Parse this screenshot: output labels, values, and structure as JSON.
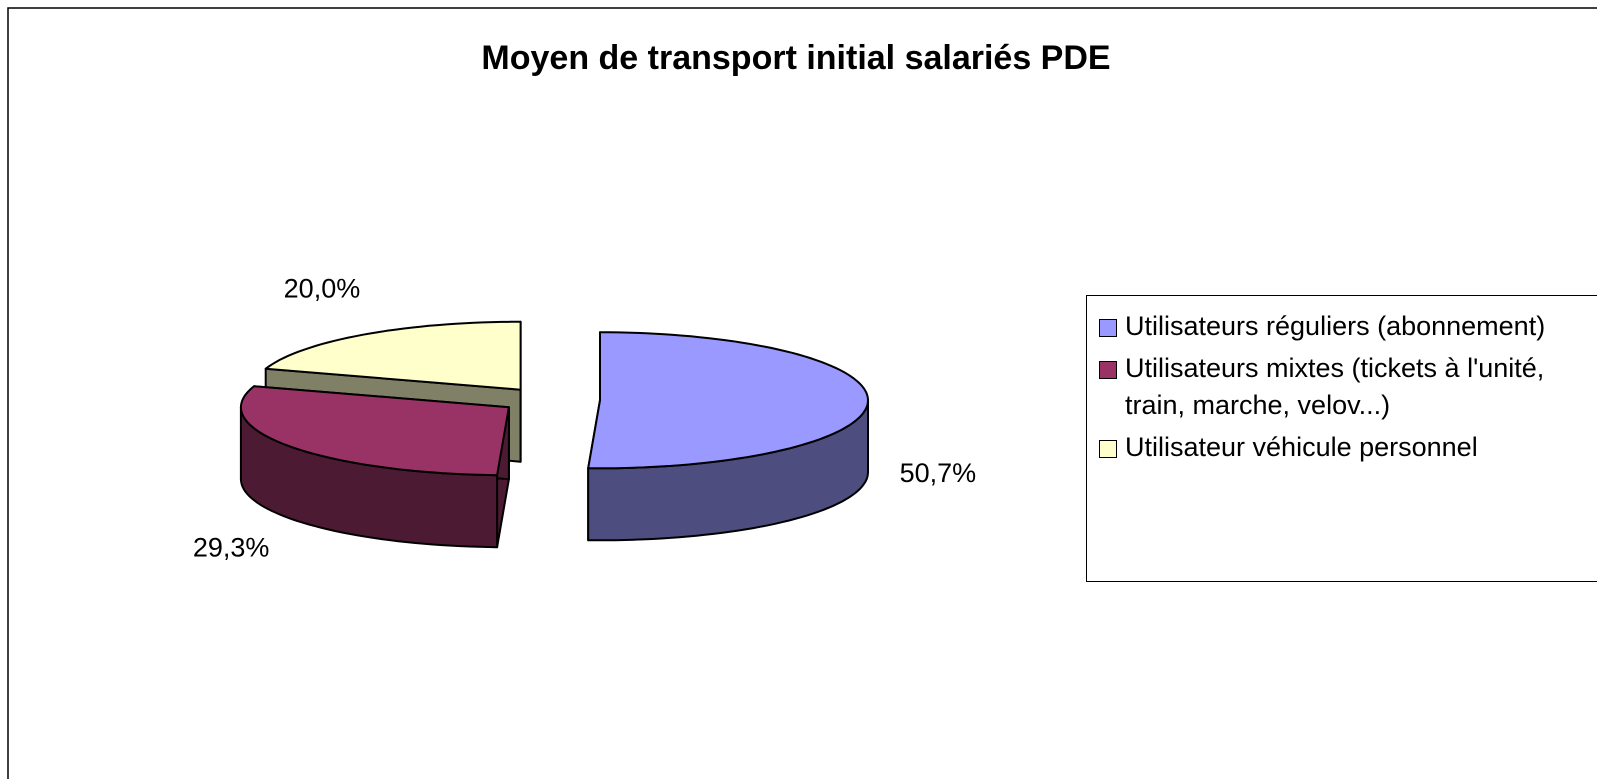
{
  "chart_data": {
    "type": "pie",
    "title": "Moyen de transport initial salariés PDE",
    "categories": [
      "Utilisateurs réguliers (abonnement)",
      "Utilisateurs mixtes (tickets à l'unité, train, marche, velov...)",
      "Utilisateur véhicule personnel"
    ],
    "values": [
      50.7,
      29.3,
      20.0
    ],
    "value_labels": [
      "50,7%",
      "29,3%",
      "20,0%"
    ],
    "colors": [
      "#9999ff",
      "#993366",
      "#ffffcc"
    ],
    "legend": "right"
  }
}
